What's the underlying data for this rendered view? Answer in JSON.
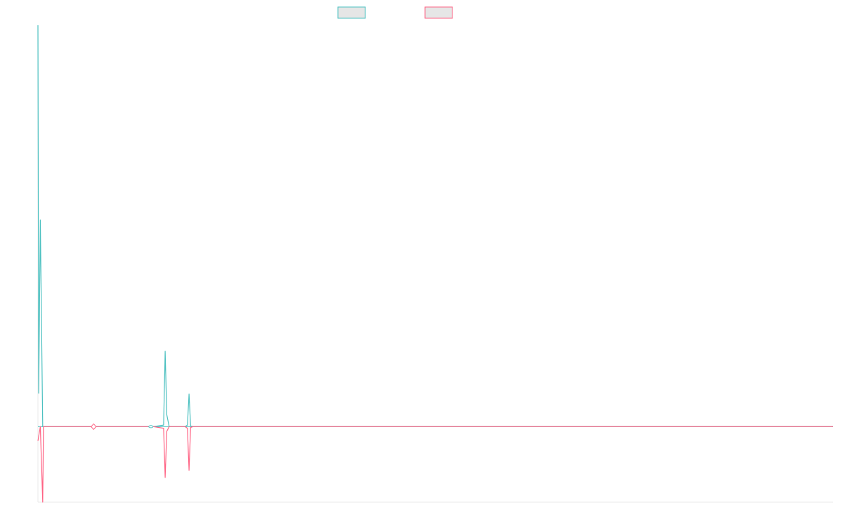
{
  "chart_data": {
    "type": "line",
    "title": "",
    "xlabel": "",
    "ylabel": "",
    "grid": false,
    "legend": "top-center",
    "xlim": [
      0,
      1000
    ],
    "ylim": [
      -95,
      505
    ],
    "baseline": 0,
    "series": [
      {
        "color": "#4bc0c0",
        "fill": "#e6e6e6",
        "x": [
          0,
          1,
          3,
          6,
          7,
          9,
          50,
          70,
          140,
          145,
          158,
          160,
          162,
          165,
          168,
          185,
          188,
          190,
          192,
          195,
          200,
          1000
        ],
        "y": [
          505,
          42,
          260,
          0,
          0,
          0,
          0,
          0,
          0,
          0,
          2,
          95,
          15,
          0,
          0,
          0,
          2,
          41,
          1,
          0,
          0,
          0
        ]
      },
      {
        "color": "#ff6384",
        "fill": "#e6e6e6",
        "x": [
          0,
          3,
          6,
          7,
          9,
          50,
          70,
          140,
          145,
          158,
          160,
          162,
          165,
          168,
          185,
          188,
          190,
          192,
          195,
          200,
          1000
        ],
        "y": [
          -18,
          0,
          -95,
          0,
          0,
          0,
          0,
          0,
          0,
          -2,
          -64,
          -6,
          0,
          0,
          0,
          -2,
          -55,
          -1,
          0,
          0,
          0
        ]
      }
    ],
    "markers": [
      {
        "x": 70,
        "y": 0,
        "color": "#ff6384",
        "shape": "diamond"
      },
      {
        "x": 142,
        "y": 0,
        "color": "#4bc0c0",
        "shape": "ellipse"
      }
    ]
  }
}
